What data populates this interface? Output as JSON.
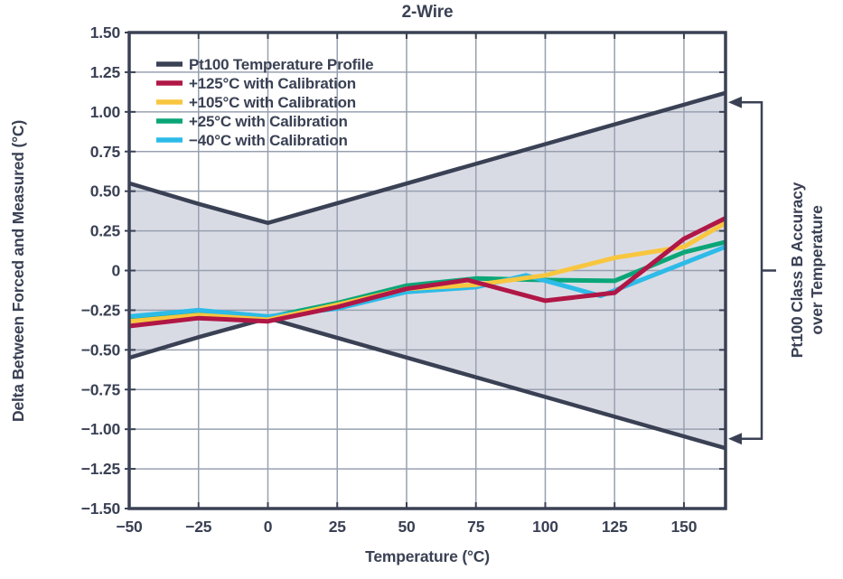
{
  "page": {
    "background": "#ffffff",
    "text_color": "#3a4154"
  },
  "chart_data": {
    "type": "line",
    "title": "2-Wire",
    "xlabel": "Temperature (°C)",
    "ylabel": "Delta Between Forced and Measured (°C)",
    "xlim": [
      -50,
      165
    ],
    "ylim": [
      -1.5,
      1.5
    ],
    "grid": true,
    "grid_color": "#98a0b0",
    "axis_color": "#3a4154",
    "legend_position": "top-left",
    "x_ticks": {
      "values": [
        -50,
        -25,
        0,
        25,
        50,
        75,
        100,
        125,
        150
      ],
      "labels": [
        "−50",
        "−25",
        "0",
        "25",
        "50",
        "75",
        "100",
        "125",
        "150"
      ]
    },
    "y_ticks": {
      "values": [
        1.5,
        1.25,
        1.0,
        0.75,
        0.5,
        0.25,
        0,
        -0.25,
        -0.5,
        -0.75,
        -1.0,
        -1.25,
        -1.5
      ],
      "labels": [
        "1.50",
        "1.25",
        "1.00",
        "0.75",
        "0.50",
        "0.25",
        "0",
        "−0.25",
        "−0.50",
        "−0.75",
        "−1.00",
        "−1.25",
        "−1.50"
      ]
    },
    "envelope": {
      "label": "Pt100 Temperature Profile",
      "color": "#3a4154",
      "band_fill": "#d9dbe4",
      "upper": [
        [
          -50,
          0.55
        ],
        [
          -25,
          0.42
        ],
        [
          0,
          0.3
        ],
        [
          165,
          1.12
        ]
      ],
      "lower": [
        [
          -50,
          -0.55
        ],
        [
          -25,
          -0.42
        ],
        [
          0,
          -0.3
        ],
        [
          165,
          -1.12
        ]
      ]
    },
    "series": [
      {
        "name": "+125°C with Calibration",
        "color": "#b01746",
        "points": [
          [
            -50,
            -0.35
          ],
          [
            -25,
            -0.3
          ],
          [
            0,
            -0.32
          ],
          [
            25,
            -0.23
          ],
          [
            50,
            -0.115
          ],
          [
            72,
            -0.06
          ],
          [
            100,
            -0.19
          ],
          [
            125,
            -0.14
          ],
          [
            150,
            0.2
          ],
          [
            165,
            0.33
          ]
        ]
      },
      {
        "name": "+105°C with Calibration",
        "color": "#f8c63f",
        "points": [
          [
            -50,
            -0.32
          ],
          [
            -25,
            -0.28
          ],
          [
            0,
            -0.31
          ],
          [
            25,
            -0.215
          ],
          [
            50,
            -0.115
          ],
          [
            75,
            -0.09
          ],
          [
            100,
            -0.03
          ],
          [
            125,
            0.08
          ],
          [
            150,
            0.15
          ],
          [
            165,
            0.3
          ]
        ]
      },
      {
        "name": "+25°C with Calibration",
        "color": "#0ba678",
        "points": [
          [
            -50,
            -0.3
          ],
          [
            -25,
            -0.26
          ],
          [
            0,
            -0.295
          ],
          [
            25,
            -0.205
          ],
          [
            50,
            -0.095
          ],
          [
            75,
            -0.05
          ],
          [
            100,
            -0.06
          ],
          [
            125,
            -0.065
          ],
          [
            150,
            0.115
          ],
          [
            165,
            0.18
          ]
        ]
      },
      {
        "name": "−40°C with Calibration",
        "color": "#2dbbe8",
        "points": [
          [
            -50,
            -0.29
          ],
          [
            -25,
            -0.25
          ],
          [
            0,
            -0.29
          ],
          [
            25,
            -0.24
          ],
          [
            50,
            -0.135
          ],
          [
            75,
            -0.105
          ],
          [
            93,
            -0.03
          ],
          [
            120,
            -0.16
          ],
          [
            165,
            0.15
          ]
        ]
      }
    ],
    "annotation": {
      "line1": "Pt100 Class B Accuracy",
      "line2": "over Temperature",
      "arrow_top": 1.06,
      "arrow_bottom": -1.06
    }
  }
}
